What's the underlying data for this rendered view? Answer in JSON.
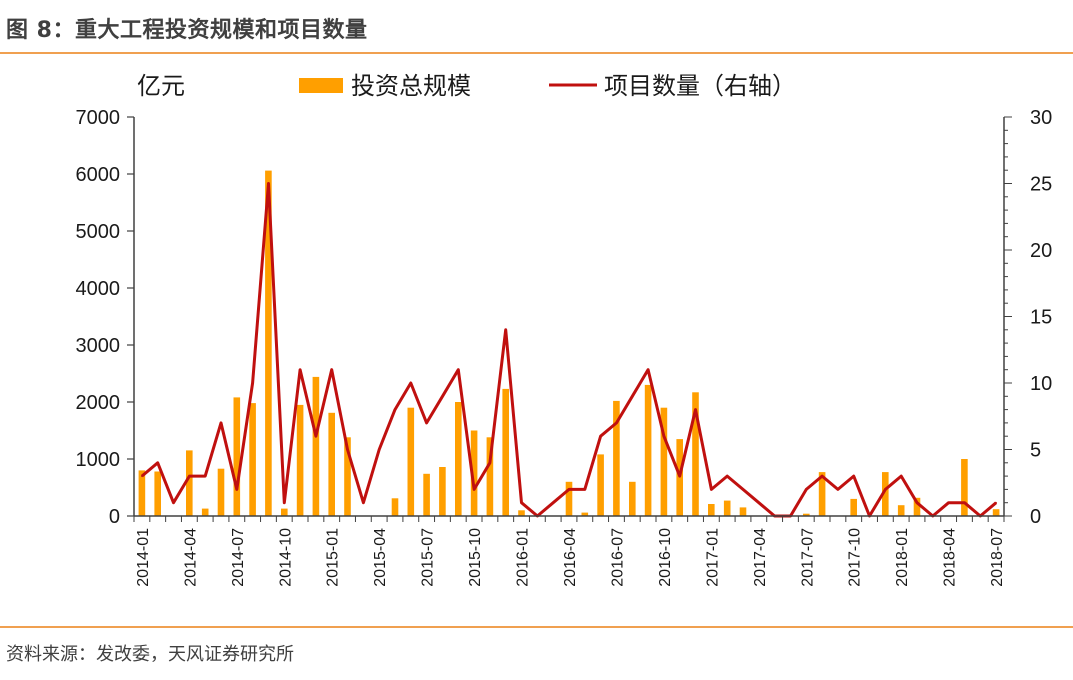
{
  "figure": {
    "title": "图 8：重大工程投资规模和项目数量",
    "source": "资料来源：发改委，天风证券研究所"
  },
  "chart_data": {
    "type": "bar",
    "title": "重大工程投资规模和项目数量",
    "left_axis_unit": "亿元",
    "legend": {
      "placement": "top",
      "entries": [
        {
          "name": "投资总规模",
          "kind": "bar",
          "color": "#ff9f00"
        },
        {
          "name": "项目数量（右轴）",
          "kind": "line",
          "color": "#c0100f"
        }
      ]
    },
    "categories": [
      "2014-01",
      "2014-02",
      "2014-03",
      "2014-04",
      "2014-05",
      "2014-06",
      "2014-07",
      "2014-08",
      "2014-09",
      "2014-10",
      "2014-11",
      "2014-12",
      "2015-01",
      "2015-02",
      "2015-03",
      "2015-04",
      "2015-05",
      "2015-06",
      "2015-07",
      "2015-08",
      "2015-09",
      "2015-10",
      "2015-11",
      "2015-12",
      "2016-01",
      "2016-02",
      "2016-03",
      "2016-04",
      "2016-05",
      "2016-06",
      "2016-07",
      "2016-08",
      "2016-09",
      "2016-10",
      "2016-11",
      "2016-12",
      "2017-01",
      "2017-02",
      "2017-03",
      "2017-04",
      "2017-05",
      "2017-06",
      "2017-07",
      "2017-08",
      "2017-09",
      "2017-10",
      "2017-11",
      "2017-12",
      "2018-01",
      "2018-02",
      "2018-03",
      "2018-04",
      "2018-05",
      "2018-06",
      "2018-07"
    ],
    "xtick_labels": [
      "2014-01",
      "2014-04",
      "2014-07",
      "2014-10",
      "2015-01",
      "2015-04",
      "2015-07",
      "2015-10",
      "2016-01",
      "2016-04",
      "2016-07",
      "2016-10",
      "2017-01",
      "2017-04",
      "2017-07",
      "2017-10",
      "2018-01",
      "2018-04",
      "2018-07"
    ],
    "series": [
      {
        "name": "投资总规模",
        "axis": "left",
        "type": "bar",
        "values": [
          800,
          780,
          0,
          1150,
          130,
          830,
          2080,
          1980,
          6060,
          130,
          1950,
          2440,
          1810,
          1380,
          0,
          0,
          310,
          1900,
          740,
          860,
          2000,
          1500,
          1380,
          2230,
          100,
          0,
          0,
          600,
          60,
          1080,
          2020,
          600,
          2300,
          1900,
          1350,
          2170,
          210,
          270,
          150,
          0,
          0,
          0,
          40,
          770,
          0,
          300,
          0,
          770,
          190,
          320,
          0,
          0,
          1000,
          0,
          120
        ]
      },
      {
        "name": "项目数量（右轴）",
        "axis": "right",
        "type": "line",
        "values": [
          3,
          4,
          1,
          3,
          3,
          7,
          2,
          10,
          25,
          1,
          11,
          6,
          11,
          5,
          1,
          5,
          8,
          10,
          7,
          9,
          11,
          2,
          4,
          14,
          1,
          0,
          1,
          2,
          2,
          6,
          7,
          9,
          11,
          6,
          3,
          8,
          2,
          3,
          2,
          1,
          0,
          0,
          2,
          3,
          2,
          3,
          0,
          2,
          3,
          1,
          0,
          1,
          1,
          0,
          1
        ]
      }
    ],
    "ylim_left": [
      0,
      7000
    ],
    "yticks_left": [
      0,
      1000,
      2000,
      3000,
      4000,
      5000,
      6000,
      7000
    ],
    "ylim_right": [
      0,
      30
    ],
    "yticks_right": [
      0,
      5,
      10,
      15,
      20,
      25,
      30
    ],
    "xlabel": "",
    "ylabel": "亿元",
    "grid": false
  }
}
